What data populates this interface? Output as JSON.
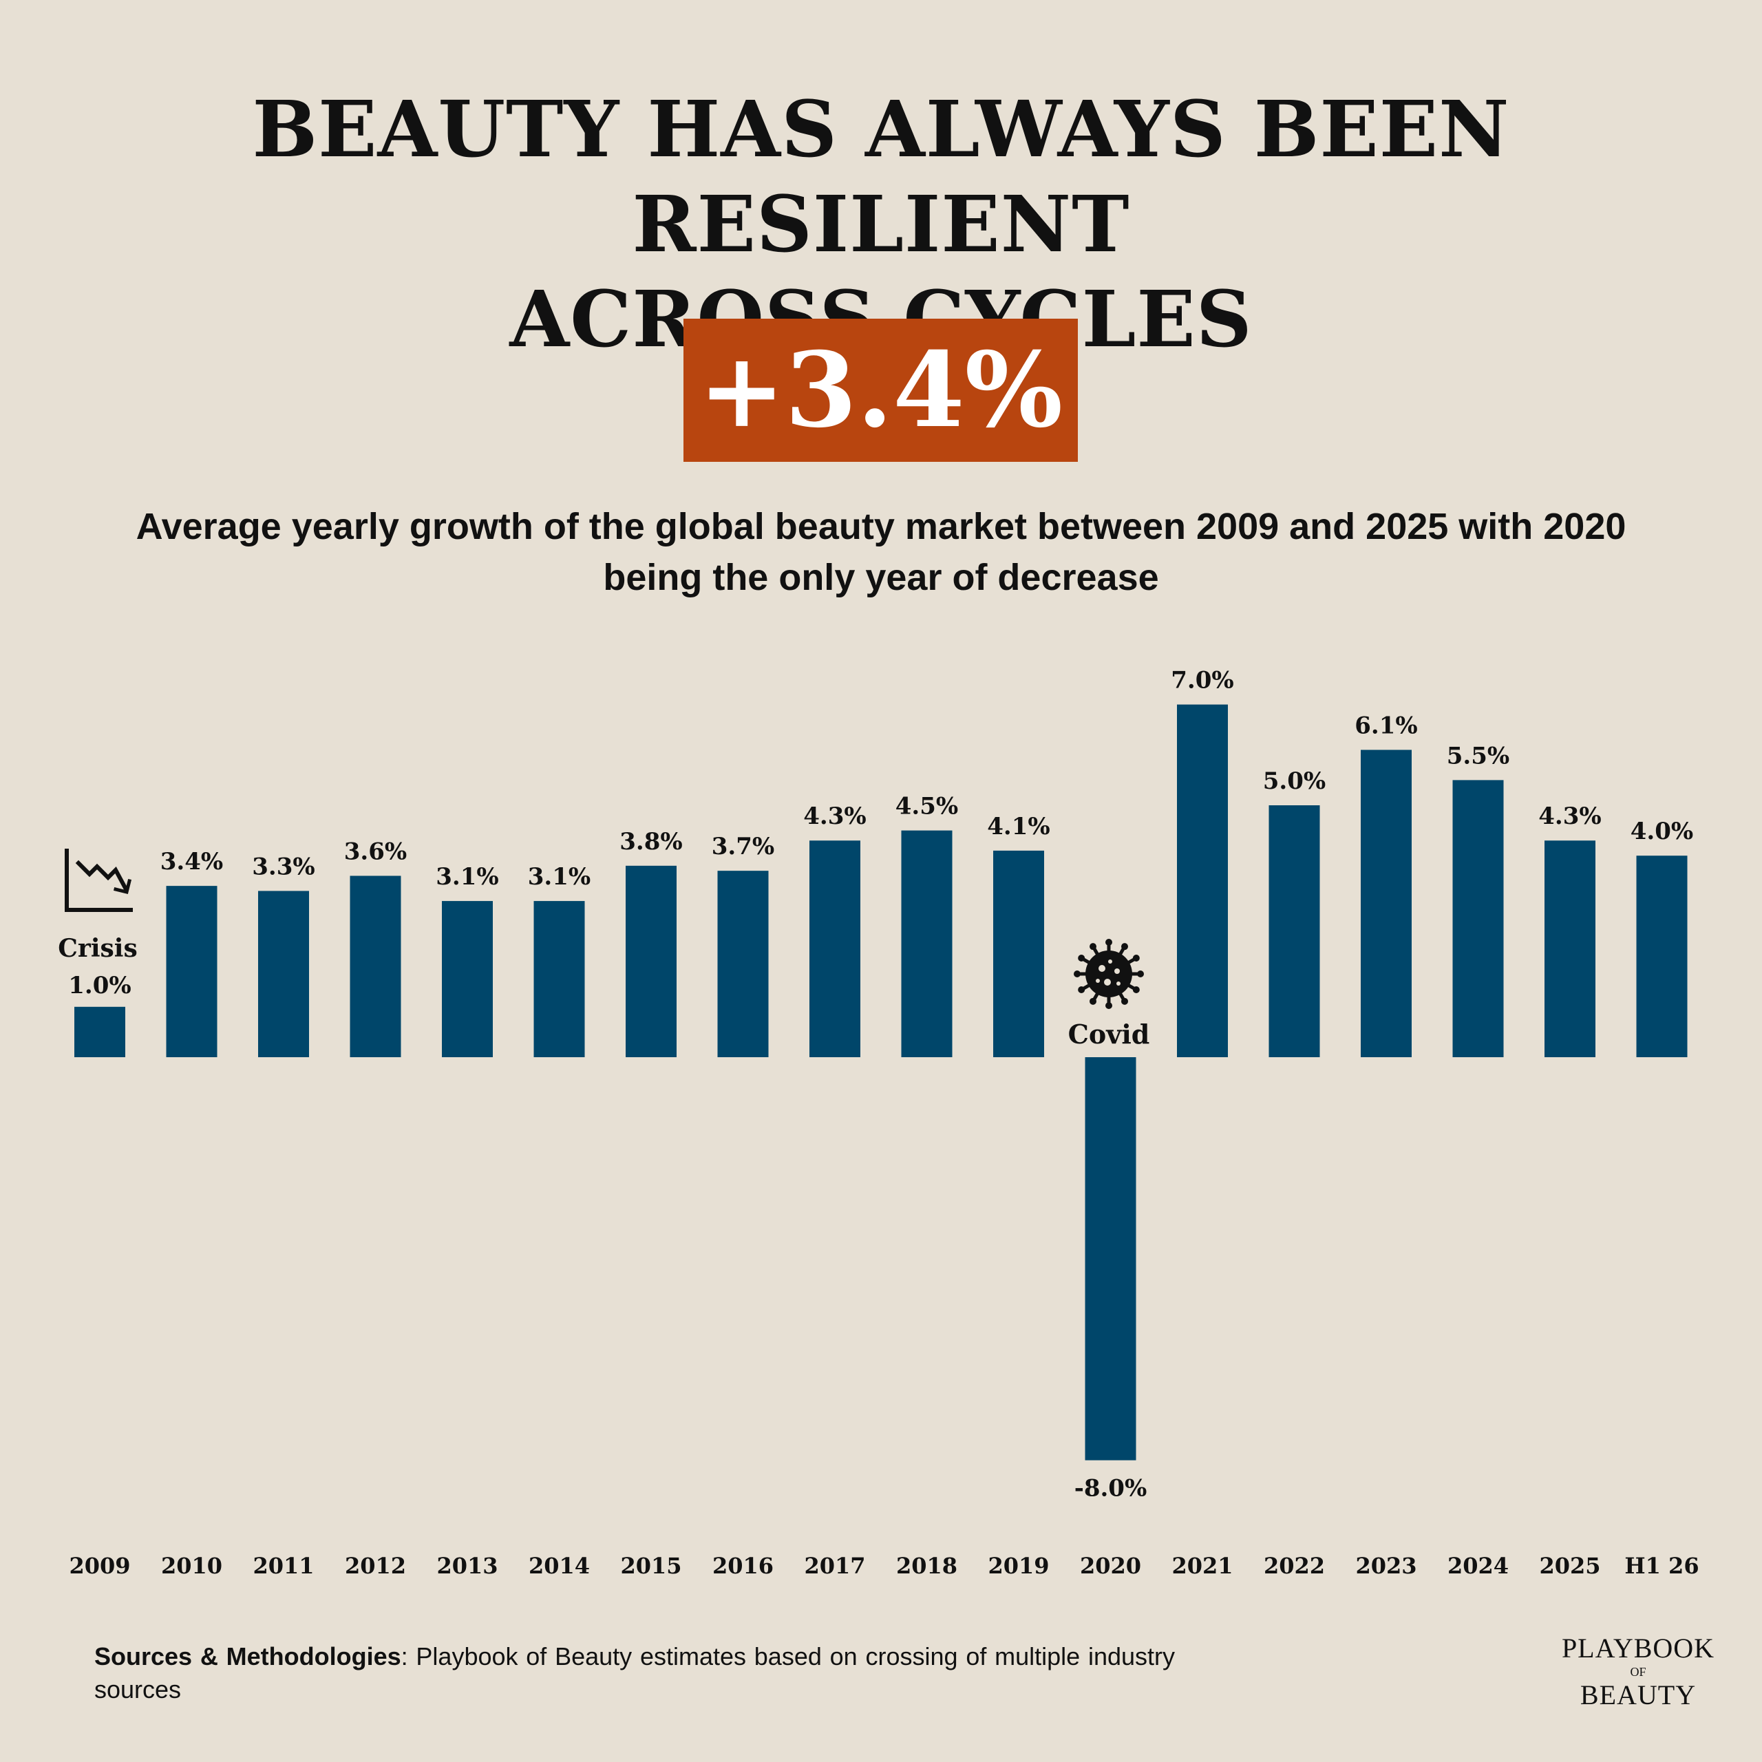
{
  "header": {
    "title_line1": "BEAUTY HAS ALWAYS BEEN RESILIENT",
    "title_line2": "ACROSS CYCLES",
    "badge": "+3.4%",
    "subtitle_line1": "Average yearly growth of the global beauty market between 2009 and 2025 with 2020",
    "subtitle_line2": "being the only year of decrease"
  },
  "chart_data": {
    "type": "bar",
    "categories": [
      "2009",
      "2010",
      "2011",
      "2012",
      "2013",
      "2014",
      "2015",
      "2016",
      "2017",
      "2018",
      "2019",
      "2020",
      "2021",
      "2022",
      "2023",
      "2024",
      "2025",
      "H1 26"
    ],
    "values": [
      1.0,
      3.4,
      3.3,
      3.6,
      3.1,
      3.1,
      3.8,
      3.7,
      4.3,
      4.5,
      4.1,
      -8.0,
      7.0,
      5.0,
      6.1,
      5.5,
      4.3,
      4.0
    ],
    "labels": [
      "1.0%",
      "3.4%",
      "3.3%",
      "3.6%",
      "3.1%",
      "3.1%",
      "3.8%",
      "3.7%",
      "4.3%",
      "4.5%",
      "4.1%",
      "-8.0%",
      "7.0%",
      "5.0%",
      "6.1%",
      "5.5%",
      "4.3%",
      "4.0%"
    ],
    "bar_color": "#00466a",
    "annotations": [
      {
        "category": "2009",
        "text": "Crisis",
        "icon": "declining-chart-icon"
      },
      {
        "category": "2020",
        "text": "Covid",
        "icon": "virus-icon"
      }
    ],
    "grid": false,
    "legend": "none"
  },
  "footer": {
    "sources_label": "Sources & Methodologies",
    "sources_text": ": Playbook of Beauty estimates based on crossing of multiple industry sources"
  },
  "logo": {
    "line1": "PLAYBOOK",
    "line2": "OF",
    "line3": "BEAUTY"
  }
}
